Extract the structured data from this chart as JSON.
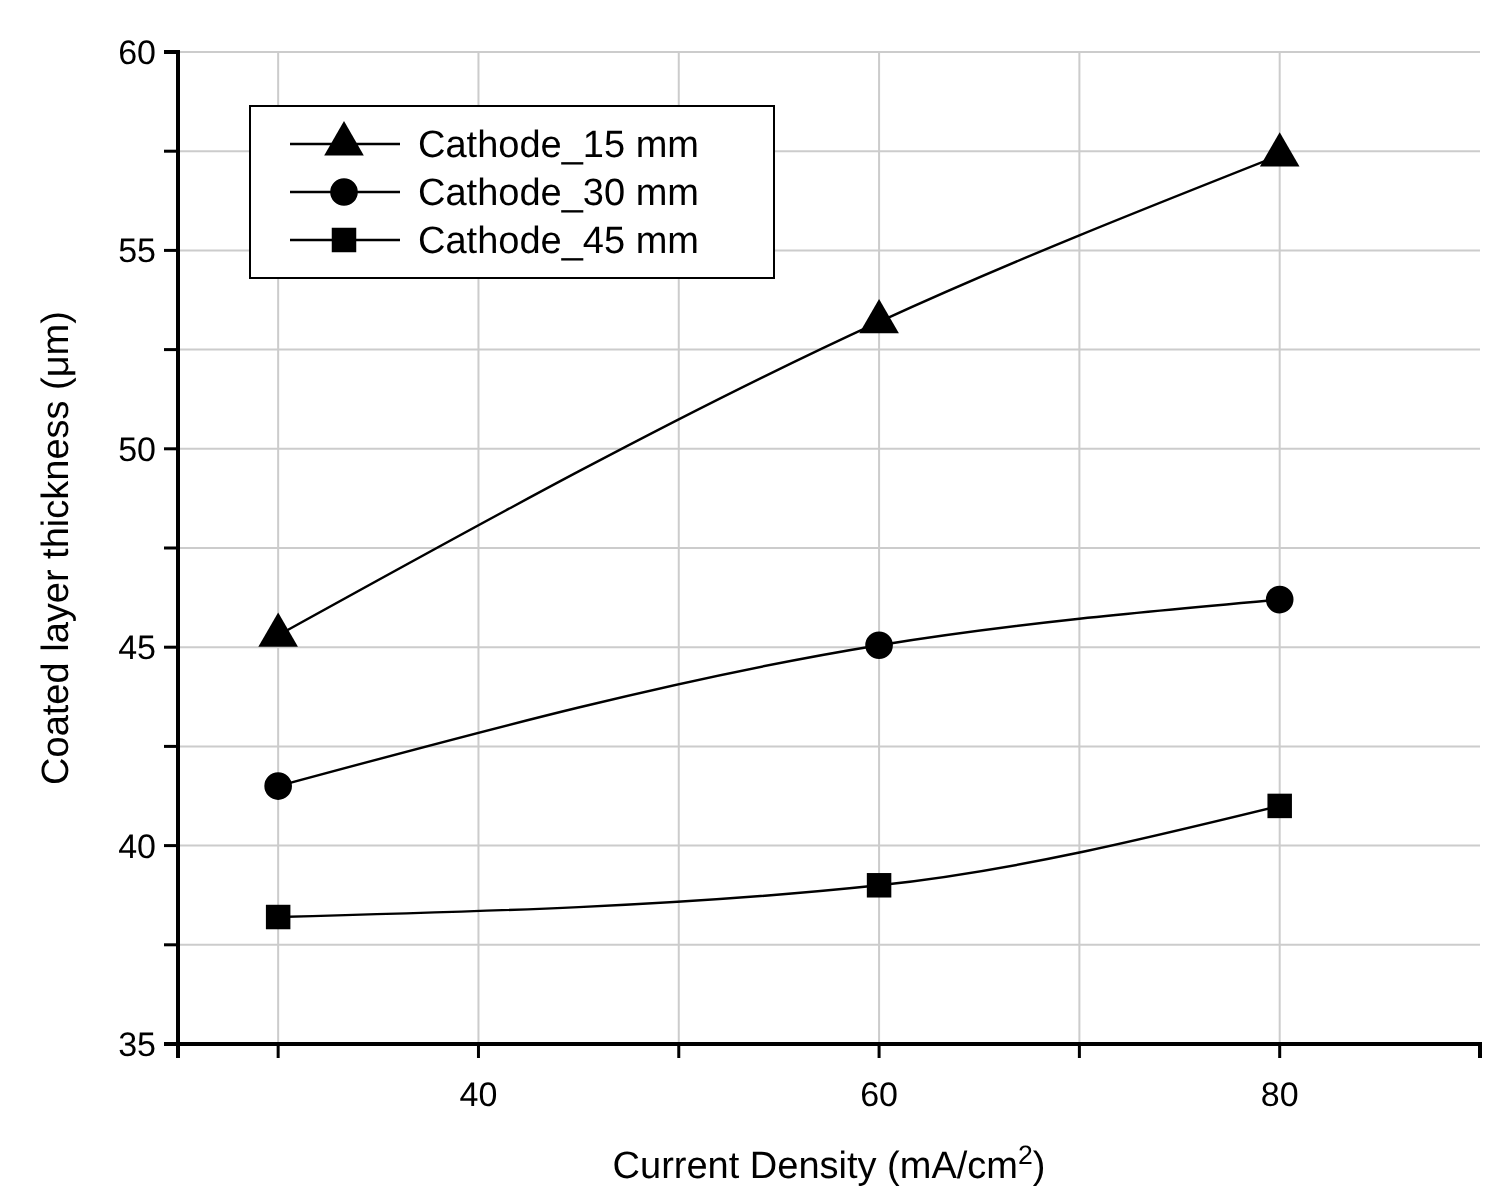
{
  "chart_data": {
    "type": "line",
    "xlabel": "Current Density (mA/cm$^{2}$)",
    "ylabel": "Coated layer thickness (μm)",
    "x": [
      30,
      60,
      80
    ],
    "series": [
      {
        "name": "Cathode_15 mm",
        "color": "#000000",
        "marker": "triangle",
        "values": [
          45.3,
          53.2,
          57.4
        ]
      },
      {
        "name": "Cathode_30 mm",
        "color": "#000000",
        "marker": "circle",
        "values": [
          41.5,
          45.05,
          46.2
        ]
      },
      {
        "name": "Cathode_45 mm",
        "color": "#000000",
        "marker": "square",
        "values": [
          38.2,
          39.0,
          41.0
        ]
      }
    ],
    "xlim": [
      25,
      90
    ],
    "xticks": [
      {
        "value": 30,
        "label": null
      },
      40,
      {
        "value": 50,
        "label": null
      },
      60,
      {
        "value": 70,
        "label": null
      },
      80
    ],
    "ylim": [
      35,
      60
    ],
    "yticks": [
      35,
      {
        "value": 37.5,
        "label": null
      },
      40,
      {
        "value": 42.5,
        "label": null
      },
      45,
      {
        "value": 47.5,
        "label": null
      },
      50,
      {
        "value": 52.5,
        "label": null
      },
      55,
      {
        "value": 57.5,
        "label": null
      },
      60
    ],
    "grid": true,
    "legend": "top left",
    "line_style": "solid"
  }
}
